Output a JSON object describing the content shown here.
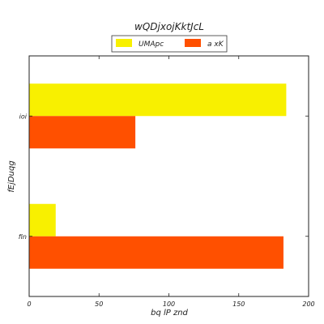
{
  "chart_data": {
    "type": "bar",
    "orientation": "horizontal",
    "title": "wQDjxojKktJcL",
    "xlabel": "bq   lP znd",
    "ylabel": "fEjDuqg",
    "categories": [
      "fin",
      "ioi"
    ],
    "series": [
      {
        "name": "UMApc",
        "color": "#f8f000",
        "values": [
          19,
          184
        ]
      },
      {
        "name": "a xK",
        "color": "#ff5000",
        "values": [
          182,
          76
        ]
      }
    ],
    "xlim": [
      0,
      200
    ],
    "xticks": [
      0,
      50,
      100,
      150,
      200
    ],
    "grid": false,
    "legend_position": "top-center"
  }
}
